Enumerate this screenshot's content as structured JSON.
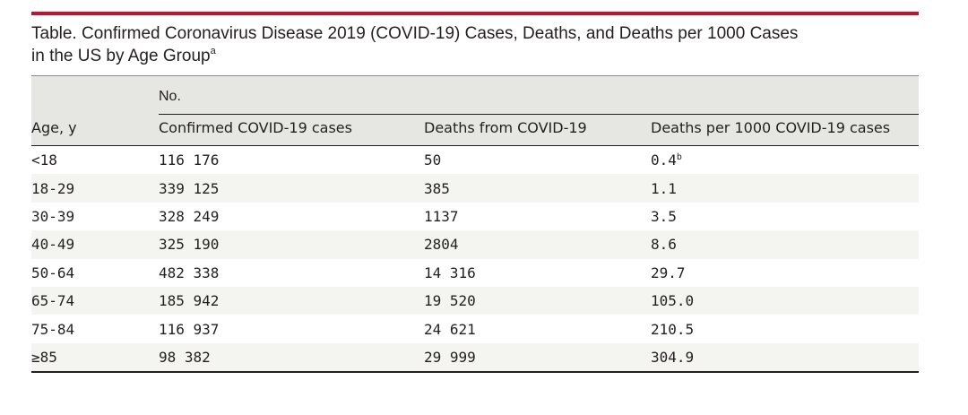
{
  "colors": {
    "accent_rule": "#c8102e",
    "header_bg": "#e6e7e2",
    "alt_row_bg": "#f4f4f1",
    "text": "#231f20"
  },
  "table": {
    "caption": "Table. Confirmed Coronavirus Disease 2019 (COVID-19) Cases, Deaths, and Deaths per 1000 Cases",
    "caption_line2": "in the US by Age Group",
    "caption_footnote_mark": "a",
    "group_header": "No.",
    "columns": [
      "Age, y",
      "Confirmed COVID-19 cases",
      "Deaths from COVID-19",
      "Deaths per 1000 COVID-19 cases"
    ],
    "rows": [
      {
        "age": "<18",
        "cases": "116 176",
        "deaths": "50",
        "rate": "0.4",
        "rate_note": "b"
      },
      {
        "age": "18-29",
        "cases": "339 125",
        "deaths": "385",
        "rate": "1.1",
        "rate_note": ""
      },
      {
        "age": "30-39",
        "cases": "328 249",
        "deaths": "1137",
        "rate": "3.5",
        "rate_note": ""
      },
      {
        "age": "40-49",
        "cases": "325 190",
        "deaths": "2804",
        "rate": "8.6",
        "rate_note": ""
      },
      {
        "age": "50-64",
        "cases": "482 338",
        "deaths": "14 316",
        "rate": "29.7",
        "rate_note": ""
      },
      {
        "age": "65-74",
        "cases": "185 942",
        "deaths": "19 520",
        "rate": "105.0",
        "rate_note": ""
      },
      {
        "age": "75-84",
        "cases": "116 937",
        "deaths": "24 621",
        "rate": "210.5",
        "rate_note": ""
      },
      {
        "age": "≥85",
        "cases": "98 382",
        "deaths": "29 999",
        "rate": "304.9",
        "rate_note": ""
      }
    ]
  }
}
